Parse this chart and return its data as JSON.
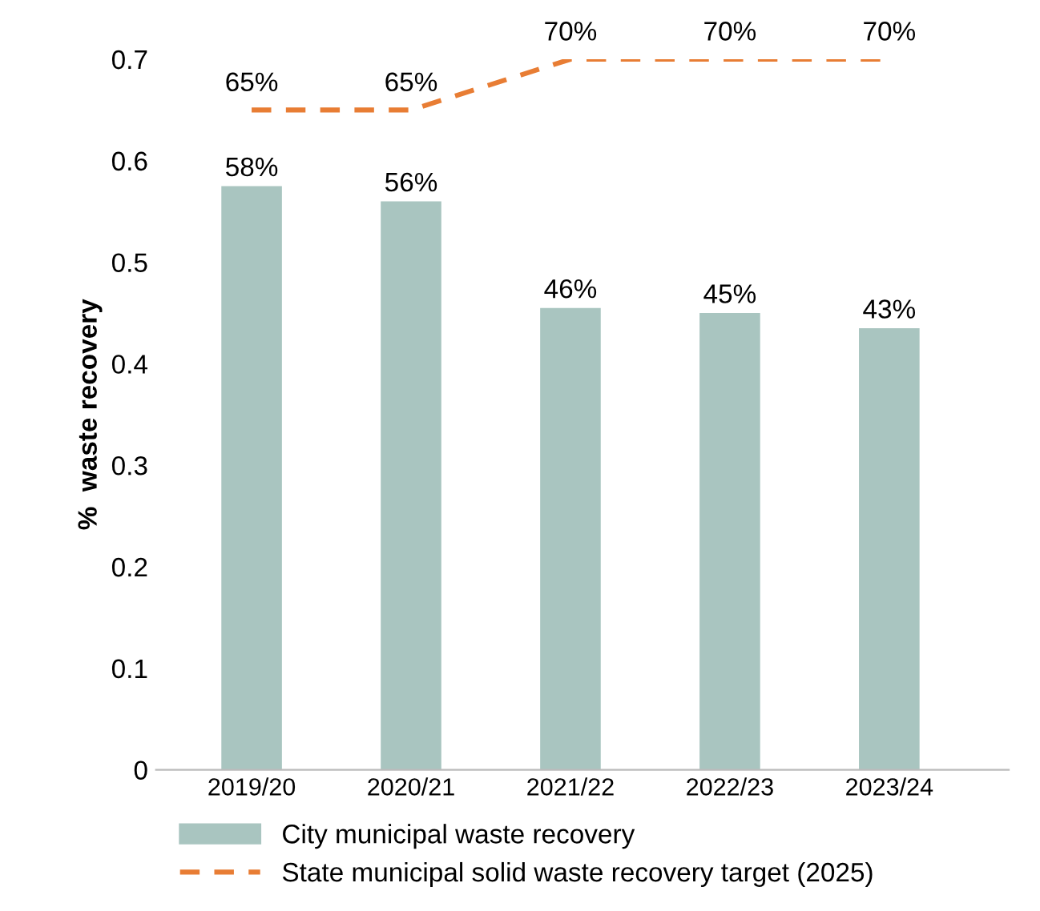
{
  "chart_data": {
    "type": "bar",
    "ylabel": "%  waste recovery",
    "categories": [
      "2019/20",
      "2020/21",
      "2021/22",
      "2022/23",
      "2023/24"
    ],
    "series": [
      {
        "name": "City municipal waste recovery",
        "color": "#a9c5c0",
        "values": [
          0.575,
          0.56,
          0.455,
          0.45,
          0.435
        ],
        "value_labels": [
          "58%",
          "56%",
          "46%",
          "45%",
          "43%"
        ]
      },
      {
        "name": "State municipal solid waste recovery target (2025)",
        "type": "line",
        "color": "#e87d34",
        "line_style": "dashed",
        "values": [
          0.65,
          0.65,
          0.7,
          0.7,
          0.7
        ],
        "value_labels": [
          "65%",
          "65%",
          "70%",
          "70%",
          "70%"
        ]
      }
    ],
    "ylim": [
      0,
      0.7
    ],
    "yticks": [
      0,
      0.1,
      0.2,
      0.3,
      0.4,
      0.5,
      0.6,
      0.7
    ],
    "grid": false,
    "legend": "bottom left"
  }
}
